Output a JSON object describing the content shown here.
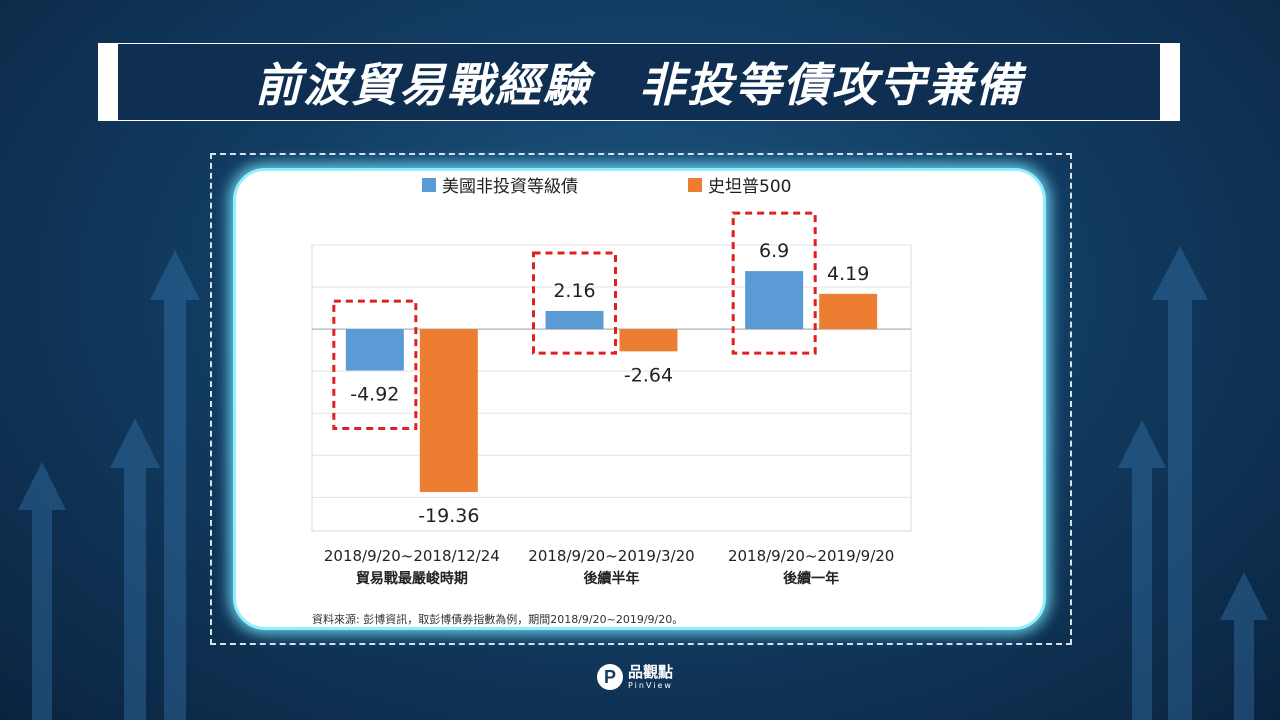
{
  "title": "前波貿易戰經驗　非投等債攻守兼備",
  "source_note": "資料來源: 彭博資訊，取彭博債券指數為例，期間2018/9/20~2019/9/20。",
  "logo": {
    "name": "品觀點",
    "sub": "PinView",
    "icon": "pinview-p-logo-icon"
  },
  "colors": {
    "series_high_yield": "#5b9bd5",
    "series_sp500": "#ed7d31",
    "highlight": "#e02020",
    "card_glow": "#8ff0ff"
  },
  "chart_data": {
    "type": "bar",
    "categories": [
      "2018/9/20~2018/12/24\n貿易戰最嚴峻時期",
      "2018/9/20~2019/3/20\n後續半年",
      "2018/9/20~2019/9/20\n後續一年"
    ],
    "series": [
      {
        "name": "美國非投資等級債",
        "values": [
          -4.92,
          2.16,
          6.9
        ]
      },
      {
        "name": "史坦普500",
        "values": [
          -19.36,
          -2.64,
          4.19
        ]
      }
    ],
    "ylim": [
      -24,
      10
    ],
    "grid": true,
    "legend": "top-center",
    "highlighted_series": "美國非投資等級債",
    "title": "",
    "xlabel": "",
    "ylabel": ""
  }
}
